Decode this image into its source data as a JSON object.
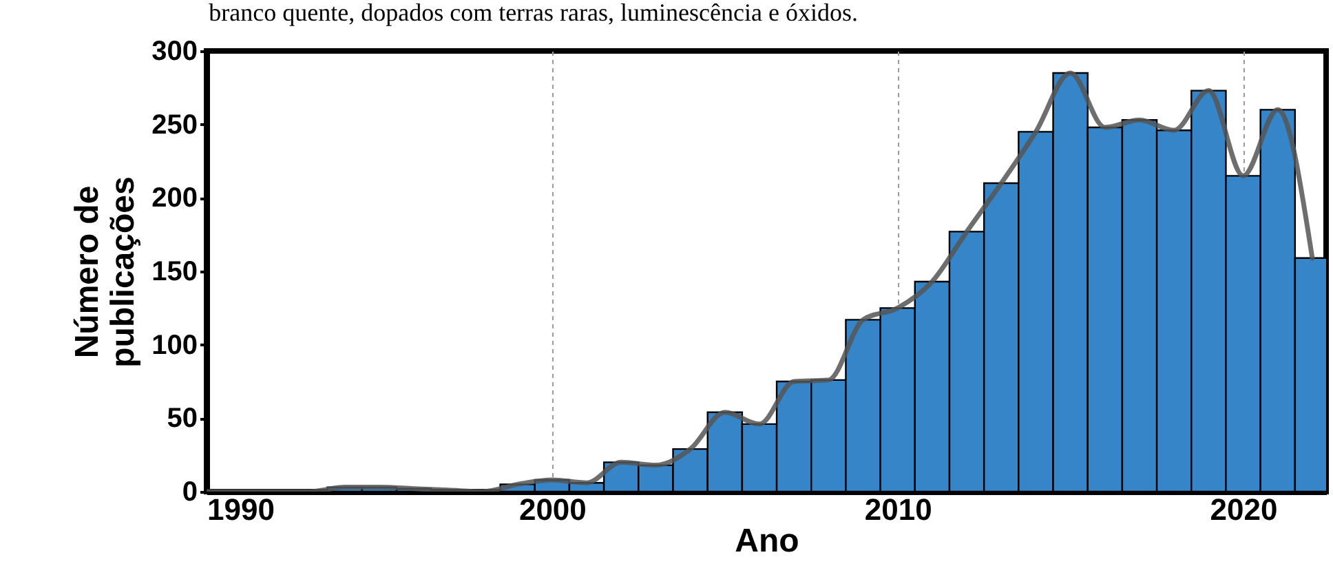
{
  "chart_data": {
    "type": "bar",
    "title": "branco quente, dopados com terras raras, luminescência e óxidos.",
    "xlabel": "Ano",
    "ylabel": "Número de\npublicações",
    "x": [
      1990,
      1991,
      1992,
      1993,
      1994,
      1995,
      1996,
      1997,
      1998,
      1999,
      2000,
      2001,
      2002,
      2003,
      2004,
      2005,
      2006,
      2007,
      2008,
      2009,
      2010,
      2011,
      2012,
      2013,
      2014,
      2015,
      2016,
      2017,
      2018,
      2019,
      2020,
      2021,
      2022
    ],
    "series": [
      {
        "color": "#3585c8",
        "values": [
          null,
          null,
          null,
          null,
          3,
          3,
          2,
          null,
          null,
          5,
          8,
          6,
          20,
          18,
          29,
          54,
          46,
          75,
          76,
          117,
          125,
          143,
          177,
          210,
          245,
          285,
          248,
          253,
          246,
          273,
          215,
          260,
          159
        ]
      },
      {
        "type": "line",
        "color": "#555555",
        "values": [
          0,
          0,
          0,
          0,
          3,
          3,
          2,
          1,
          0,
          5,
          8,
          6,
          20,
          18,
          29,
          54,
          46,
          75,
          76,
          117,
          125,
          143,
          177,
          210,
          245,
          285,
          248,
          253,
          246,
          273,
          215,
          260,
          159
        ]
      }
    ],
    "xlim": [
      1990,
      2022.4
    ],
    "ylim": [
      0,
      300
    ],
    "xticks": [
      1990,
      2000,
      2010,
      2020
    ],
    "yticks": [
      0,
      50,
      100,
      150,
      200,
      250,
      300
    ],
    "grid": "x",
    "marker": "none",
    "line_style": "solid"
  }
}
